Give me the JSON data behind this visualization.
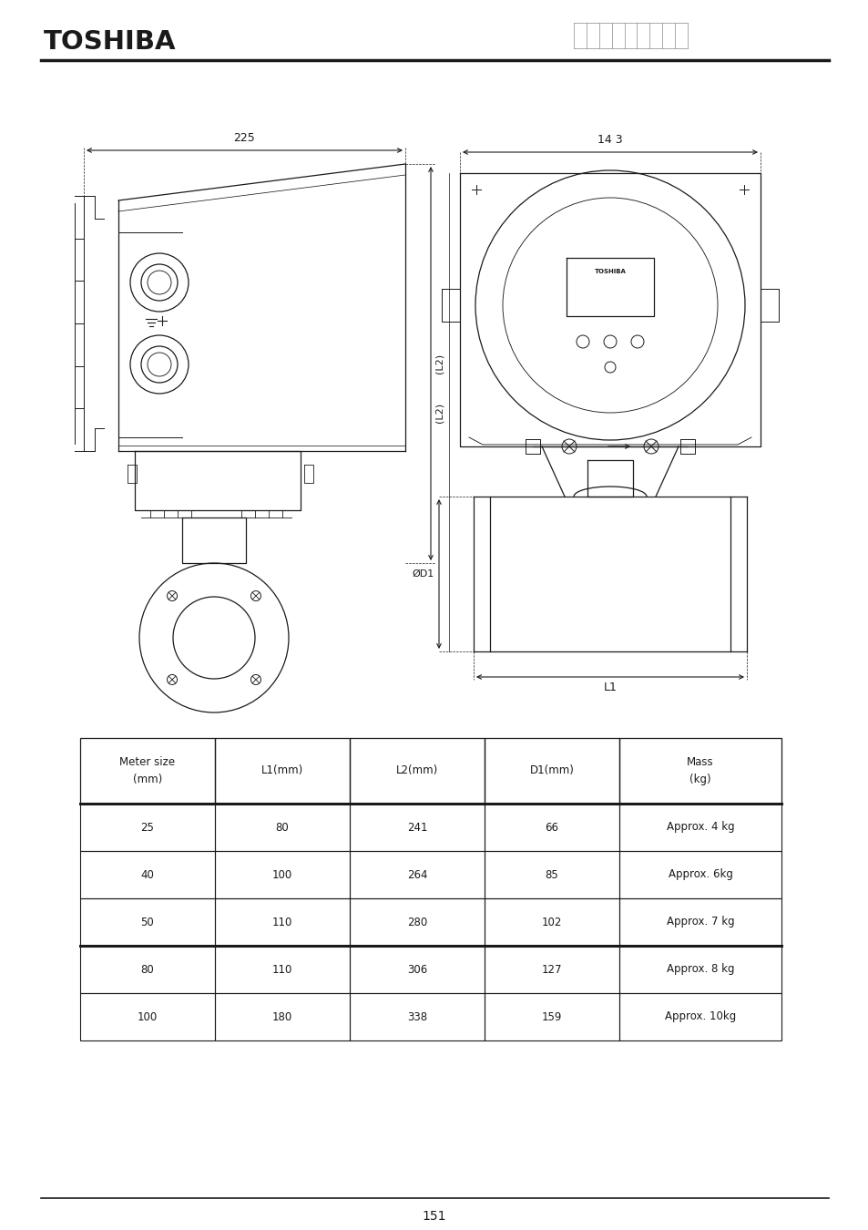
{
  "title_text": "TOSHIBA",
  "page_number": "151",
  "dim_225": "225",
  "dim_143": "14 3",
  "dim_L2": "(L2)",
  "dim_D1": "ØD1",
  "dim_L1": "L1",
  "table_headers": [
    "Meter size\n(mm)",
    "L1(mm)",
    "L2(mm)",
    "D1(mm)",
    "Mass\n(kg)"
  ],
  "table_rows": [
    [
      "25",
      "80",
      "241",
      "66",
      "Approx. 4 kg"
    ],
    [
      "40",
      "100",
      "264",
      "85",
      "Approx. 6kg"
    ],
    [
      "50",
      "110",
      "280",
      "102",
      "Approx. 7 kg"
    ],
    [
      "80",
      "110",
      "306",
      "127",
      "Approx. 8 kg"
    ],
    [
      "100",
      "180",
      "338",
      "159",
      "Approx. 10kg"
    ]
  ],
  "bg_color": "#ffffff",
  "line_color": "#1a1a1a"
}
